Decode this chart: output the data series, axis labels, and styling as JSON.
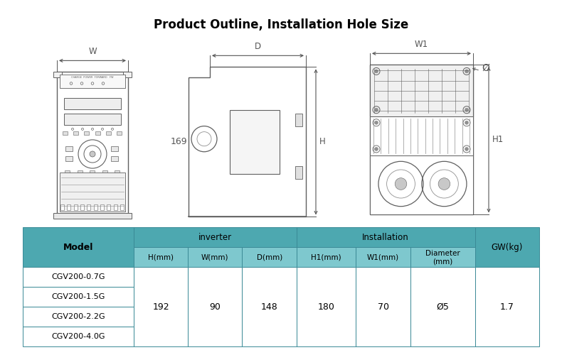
{
  "title": "Product Outline, Installation Hole Size",
  "title_fontsize": 12,
  "title_fontweight": "bold",
  "background_color": "#ffffff",
  "table_header_color": "#4da8b0",
  "table_subheader_color": "#7ec8ce",
  "table_border_color": "#3a8a96",
  "table_text_color": "#000000",
  "col_headers": [
    "H(mm)",
    "W(mm)",
    "D(mm)",
    "H1(mm)",
    "W1(mm)",
    "Diameter\n(mm)"
  ],
  "rows": [
    [
      "CGV200-0.7G",
      "192",
      "90",
      "148",
      "180",
      "70",
      "Ø5",
      "1.7"
    ],
    [
      "CGV200-1.5G",
      "192",
      "90",
      "148",
      "180",
      "70",
      "Ø5",
      "1.7"
    ],
    [
      "CGV200-2.2G",
      "192",
      "90",
      "148",
      "180",
      "70",
      "Ø5",
      "1.7"
    ],
    [
      "CGV200-4.0G",
      "192",
      "90",
      "148",
      "180",
      "70",
      "Ø5",
      "1.7"
    ]
  ],
  "dim_169": "169",
  "label_W": "W",
  "label_D": "D",
  "label_W1": "W1",
  "label_H": "H",
  "label_H1": "H1",
  "label_diam": "Ø"
}
